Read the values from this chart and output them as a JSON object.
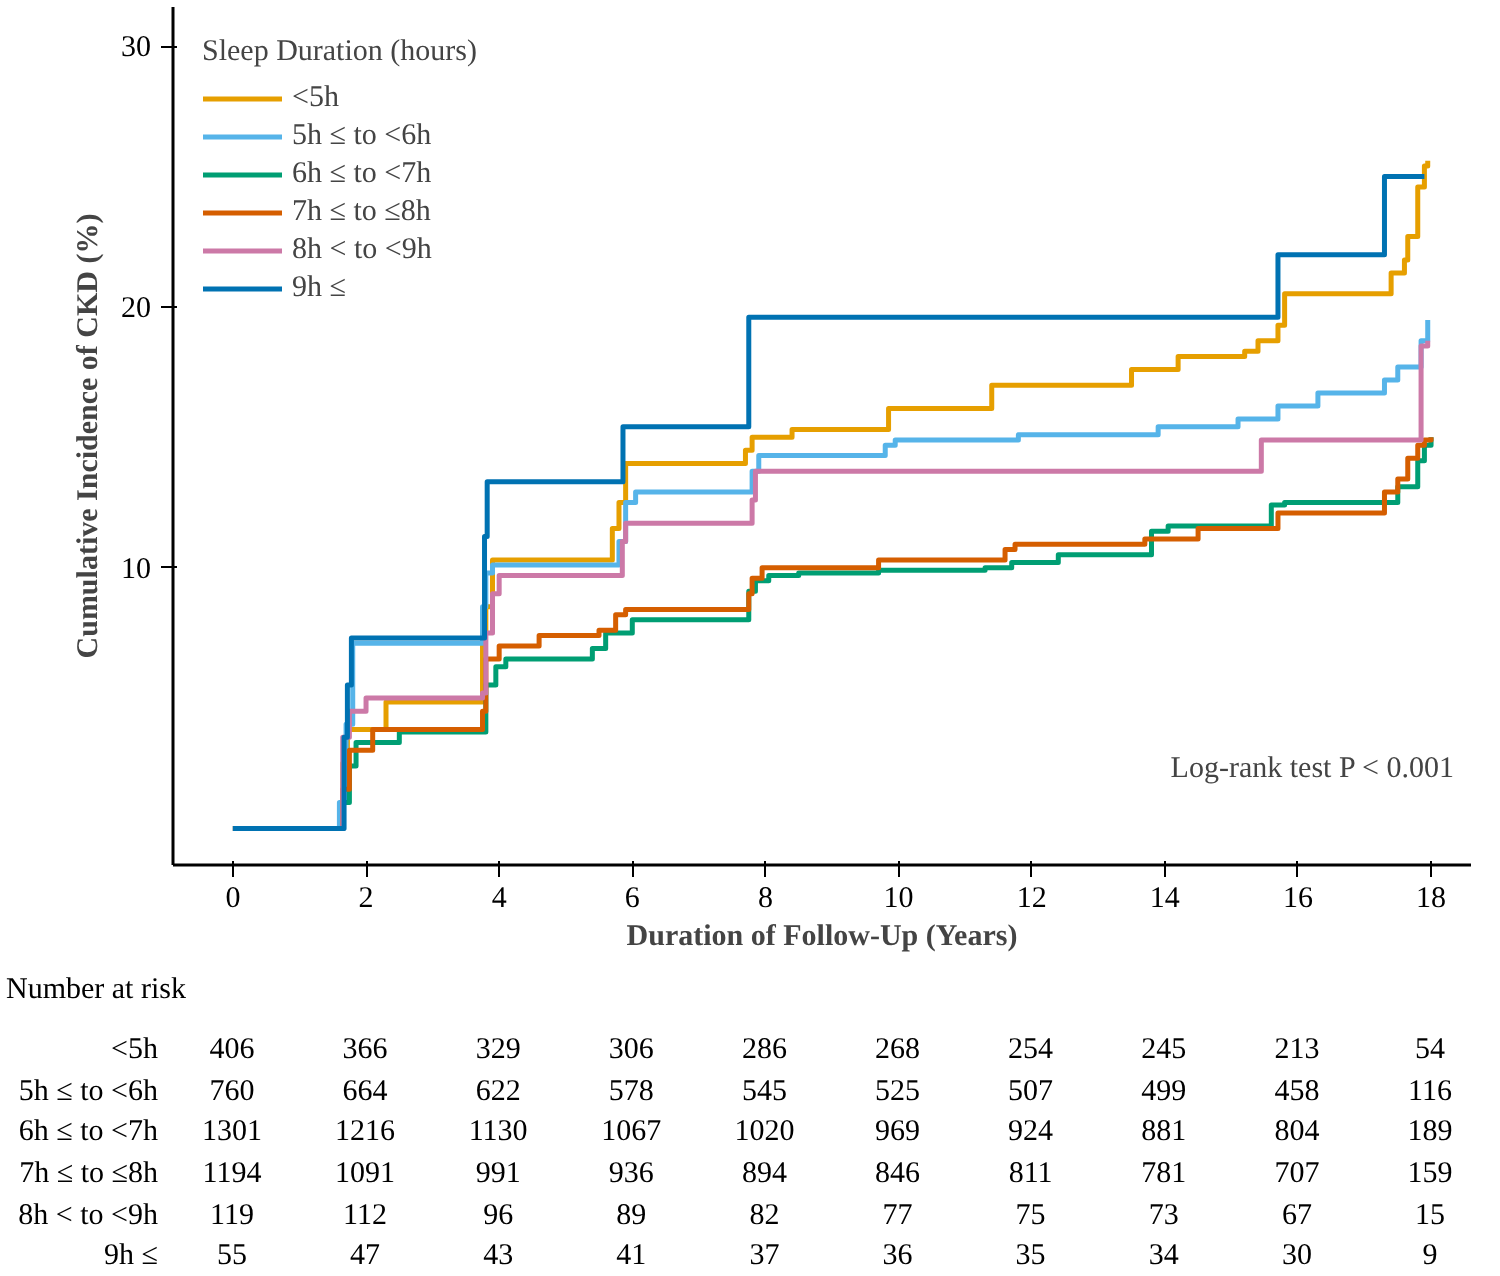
{
  "chart_data": {
    "type": "step",
    "xlabel": "Duration of Follow-Up (Years)",
    "ylabel": "Cumulative Incidence of CKD (%)",
    "legend_title": "Sleep Duration (hours)",
    "legend": "top left",
    "grid": false,
    "marker": "none",
    "line_style": "solid",
    "xlim": [
      -0.9,
      18.6
    ],
    "ylim": [
      -1.4,
      31.5
    ],
    "xticks": [
      0,
      2,
      4,
      6,
      8,
      10,
      12,
      14,
      16,
      18
    ],
    "yticks": [
      10,
      20,
      30
    ],
    "annotations": [
      "Log-rank test P < 0.001",
      "Number at risk",
      "<5h\t406\t366\t329\t306\t286\t268\t254\t245\t213\t54",
      "5h ≤ to <6h\t760\t664\t622\t578\t545\t525\t507\t499\t458\t116",
      "6h ≤ to <7h\t1301\t1216\t1130\t1067\t1020\t969\t924\t881\t804\t189",
      "7h ≤ to ≤8h\t1194\t1091\t991\t936\t894\t846\t811\t781\t707\t159",
      "8h < to <9h\t119\t112\t96\t89\t82\t77\t75\t73\t67\t15",
      "9h ≤\t55\t47\t43\t41\t37\t36\t35\t34\t30\t9"
    ],
    "series": [
      {
        "name": "<5h",
        "color": "#e69f00",
        "x": [
          0,
          1.65,
          1.72,
          2.3,
          3.75,
          3.8,
          3.9,
          5.7,
          5.8,
          5.9,
          7.7,
          7.8,
          8.4,
          9.85,
          11.4,
          13.5,
          14.2,
          15.2,
          15.4,
          15.7,
          15.8,
          17.4,
          17.6,
          17.65,
          17.8,
          17.9,
          17.95
        ],
        "values": [
          0,
          2.5,
          3.8,
          4.85,
          7.5,
          8.5,
          10.3,
          11.5,
          12.5,
          14.0,
          14.5,
          15.0,
          15.3,
          16.1,
          17.0,
          17.6,
          18.1,
          18.3,
          18.7,
          19.3,
          20.5,
          21.3,
          21.8,
          22.7,
          24.6,
          25.4,
          25.6
        ]
      },
      {
        "name": "5h ≤ to <6h",
        "color": "#56b4e9",
        "x": [
          0,
          1.6,
          1.7,
          1.8,
          3.75,
          3.8,
          3.9,
          5.8,
          5.9,
          6.05,
          7.8,
          7.9,
          9.8,
          9.95,
          11.8,
          13.9,
          15.1,
          15.7,
          16.3,
          17.3,
          17.5,
          17.85,
          17.95
        ],
        "values": [
          0,
          1.0,
          4.0,
          7.1,
          8.5,
          9.8,
          10.1,
          11.0,
          12.5,
          12.9,
          13.7,
          14.3,
          14.7,
          14.9,
          15.1,
          15.4,
          15.7,
          16.2,
          16.7,
          17.2,
          17.7,
          18.7,
          19.5
        ]
      },
      {
        "name": "6h ≤ to <7h",
        "color": "#009e73",
        "x": [
          0,
          1.65,
          1.75,
          1.85,
          2.5,
          3.8,
          3.95,
          4.1,
          5.4,
          5.6,
          6.0,
          7.75,
          7.85,
          8.05,
          8.5,
          9.7,
          11.3,
          11.7,
          12.4,
          13.8,
          14.05,
          15.6,
          15.8,
          17.5,
          17.8,
          17.9,
          18.0
        ],
        "values": [
          0,
          1.0,
          2.4,
          3.3,
          3.7,
          5.5,
          6.2,
          6.5,
          6.9,
          7.5,
          8.0,
          9.1,
          9.5,
          9.7,
          9.8,
          9.9,
          10.0,
          10.2,
          10.5,
          11.4,
          11.6,
          12.4,
          12.5,
          13.1,
          14.1,
          14.7,
          15.0
        ]
      },
      {
        "name": "7h ≤ to ≤8h",
        "color": "#d55e00",
        "x": [
          0,
          1.65,
          1.75,
          2.1,
          3.75,
          3.8,
          4.0,
          4.6,
          5.5,
          5.75,
          5.9,
          7.75,
          7.8,
          7.95,
          9.7,
          11.6,
          11.75,
          13.7,
          14.5,
          15.7,
          17.3,
          17.5,
          17.65,
          17.8,
          17.9,
          18.0
        ],
        "values": [
          0,
          1.5,
          3.0,
          3.8,
          4.5,
          6.5,
          7.0,
          7.4,
          7.6,
          8.2,
          8.4,
          9.0,
          9.6,
          10.0,
          10.3,
          10.7,
          10.9,
          11.1,
          11.5,
          12.1,
          12.9,
          13.4,
          14.2,
          14.7,
          14.9,
          15.0
        ]
      },
      {
        "name": "8h < to <9h",
        "color": "#cc79a7",
        "x": [
          0,
          1.65,
          1.75,
          2.0,
          3.75,
          3.8,
          3.9,
          4.0,
          5.85,
          5.9,
          7.8,
          7.85,
          15.45,
          17.85,
          17.95
        ],
        "values": [
          0,
          3.5,
          4.5,
          5.0,
          5.2,
          7.5,
          9.0,
          9.7,
          11.0,
          11.7,
          12.6,
          13.7,
          14.9,
          18.5,
          18.7
        ]
      },
      {
        "name": "9h ≤",
        "color": "#0072b2",
        "x": [
          0,
          1.67,
          1.72,
          1.78,
          3.78,
          3.82,
          5.86,
          7.75,
          15.7,
          17.3,
          17.9
        ],
        "values": [
          0,
          3.5,
          5.5,
          7.3,
          11.2,
          13.3,
          15.4,
          19.6,
          22.0,
          25.0,
          25.0
        ]
      }
    ]
  }
}
